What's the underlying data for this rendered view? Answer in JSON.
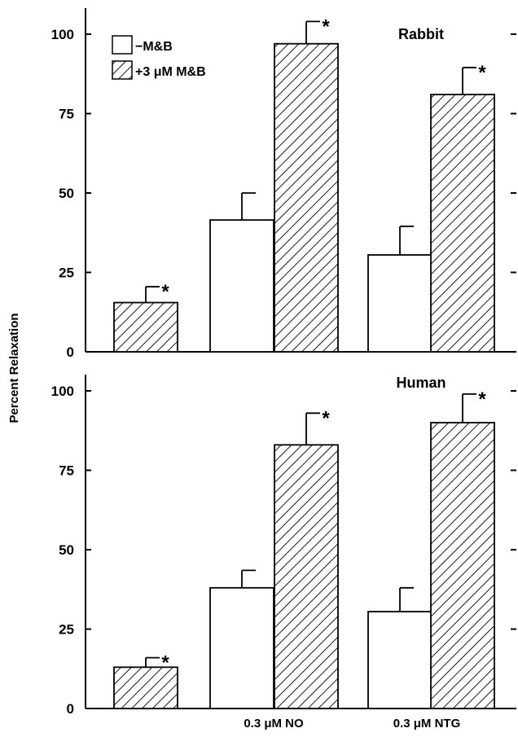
{
  "chart_data": {
    "type": "bar",
    "ylabel": "Percent Relaxation",
    "categories": [
      "",
      "0.3 μM NO",
      "0.3 μM NTG"
    ],
    "ylim": [
      0,
      100
    ],
    "yticks": [
      0,
      25,
      50,
      75,
      100
    ],
    "legend": {
      "placement": "top-left",
      "entries": [
        {
          "label": "−M&B",
          "fill": "open"
        },
        {
          "label": "+3 μM M&B",
          "fill": "hatched"
        }
      ]
    },
    "panels": [
      {
        "title": "Rabbit",
        "series": [
          {
            "name": "−M&B",
            "values": [
              null,
              41.5,
              30.5
            ],
            "errors": [
              null,
              8.5,
              9
            ]
          },
          {
            "name": "+3 μM M&B",
            "values": [
              15.5,
              97,
              81
            ],
            "errors": [
              5,
              7,
              8.5
            ]
          }
        ],
        "significance": [
          [
            false,
            false,
            false
          ],
          [
            true,
            true,
            true
          ]
        ]
      },
      {
        "title": "Human",
        "series": [
          {
            "name": "−M&B",
            "values": [
              null,
              38,
              30.5
            ],
            "errors": [
              null,
              5.5,
              7.5
            ]
          },
          {
            "name": "+3 μM M&B",
            "values": [
              13,
              83,
              90
            ],
            "errors": [
              3,
              10,
              9
            ]
          }
        ],
        "significance": [
          [
            false,
            false,
            false
          ],
          [
            true,
            true,
            true
          ]
        ]
      }
    ]
  }
}
